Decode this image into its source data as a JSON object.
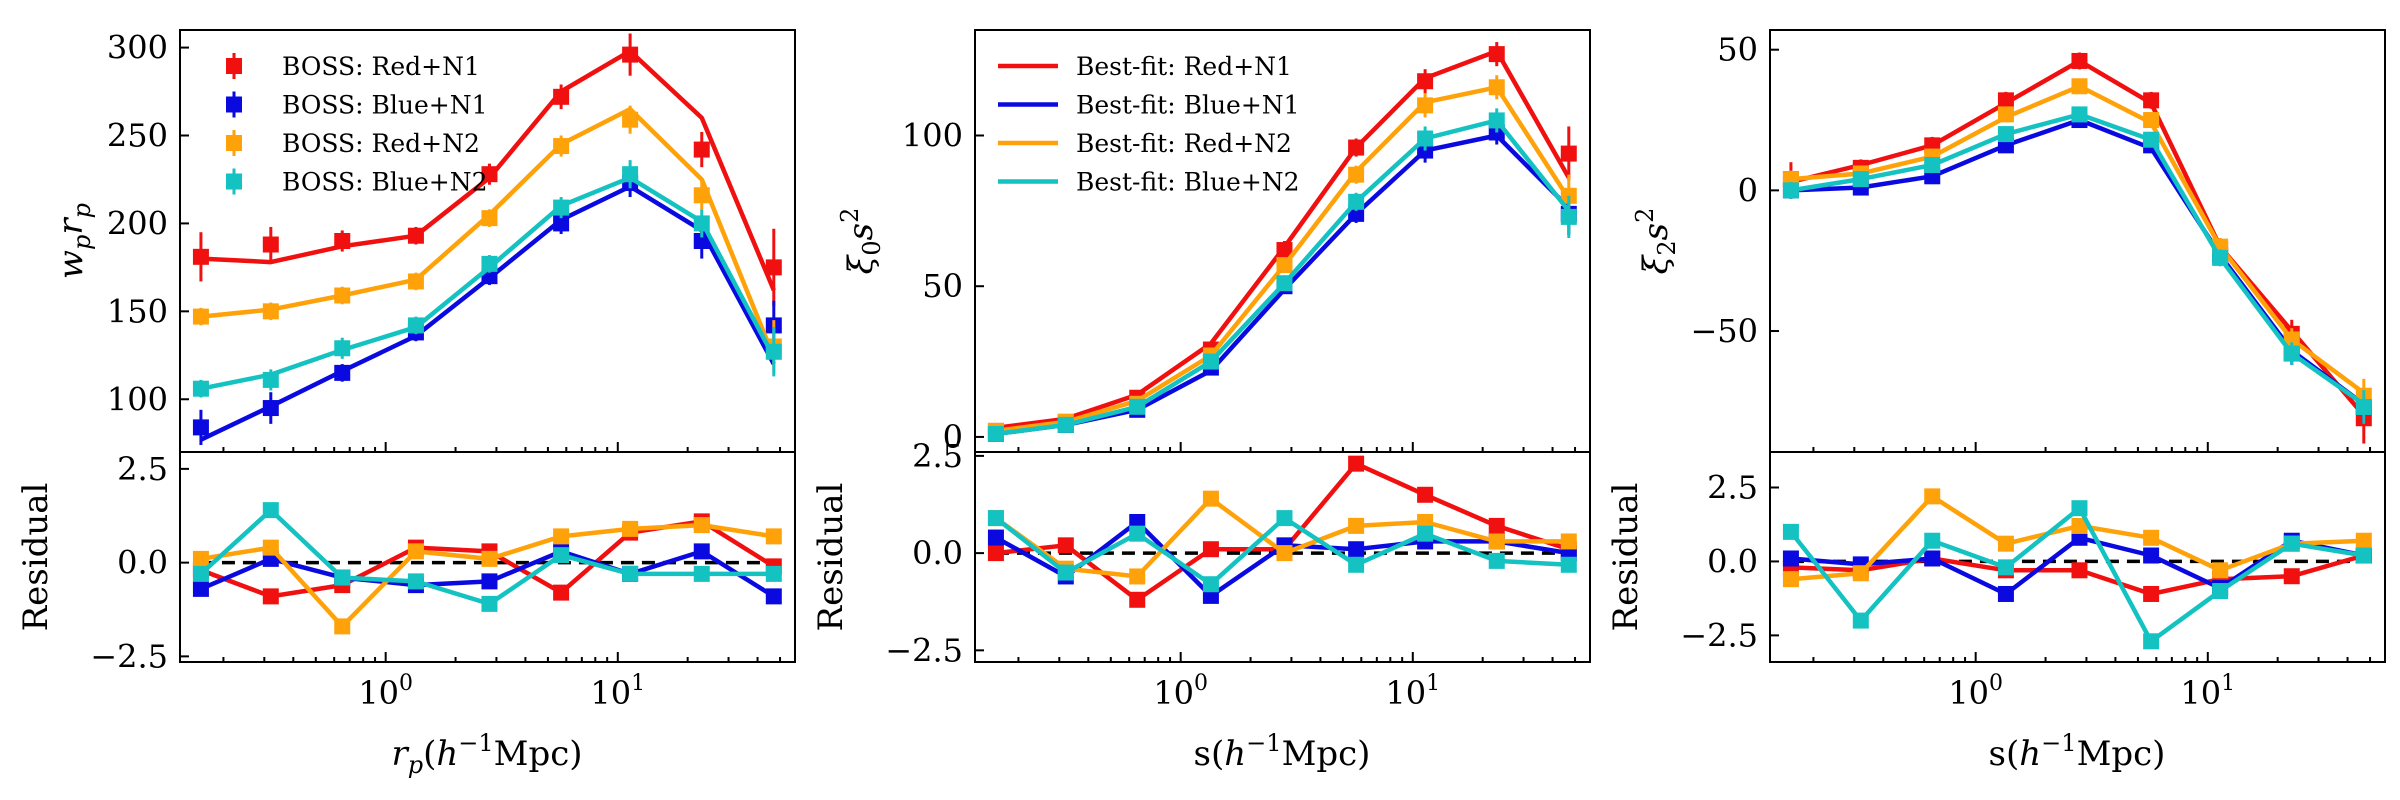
{
  "colors": {
    "red": "#f01010",
    "blue": "#0a0ae0",
    "orange": "#ffa20a",
    "cyan": "#14c2c2"
  },
  "chart_data": [
    {
      "type": "line",
      "panel": "wp-main",
      "xscale": "log",
      "xlim": [
        0.13,
        58
      ],
      "ylim": [
        70,
        310
      ],
      "xticks": [
        {
          "v": 1,
          "label": "10",
          "exp": "0"
        },
        {
          "v": 10,
          "label": "10",
          "exp": "1"
        }
      ],
      "xlabel": "",
      "ylabel": "w_p r_p",
      "yticks": [
        100,
        150,
        200,
        250,
        300
      ],
      "x": [
        0.16,
        0.32,
        0.65,
        1.35,
        2.8,
        5.7,
        11.3,
        23,
        47
      ],
      "legend": {
        "kind": "marker",
        "position": "top-left",
        "entries": [
          "BOSS: Red+N1",
          "BOSS: Blue+N1",
          "BOSS: Red+N2",
          "BOSS: Blue+N2"
        ]
      },
      "series": [
        {
          "name": "Red+N1",
          "color": "red",
          "markers": [
            181,
            188,
            190,
            193,
            228,
            272,
            296,
            242,
            175
          ],
          "errors": [
            14,
            10,
            6,
            5,
            6,
            7,
            12,
            10,
            22
          ],
          "line": [
            180,
            178,
            187,
            193,
            226,
            275,
            298,
            260,
            162
          ]
        },
        {
          "name": "Blue+N1",
          "color": "blue",
          "markers": [
            84,
            95,
            115,
            138,
            170,
            200,
            223,
            190,
            142
          ],
          "errors": [
            10,
            9,
            5,
            5,
            5,
            6,
            8,
            10,
            14
          ],
          "line": [
            77,
            96,
            116,
            136,
            169,
            202,
            221,
            196,
            120
          ]
        },
        {
          "name": "Red+N2",
          "color": "orange",
          "markers": [
            147,
            150,
            159,
            167,
            203,
            244,
            259,
            216,
            130
          ],
          "errors": [
            5,
            5,
            5,
            5,
            5,
            6,
            8,
            8,
            15
          ],
          "line": [
            147,
            151,
            159,
            168,
            205,
            245,
            265,
            225,
            124
          ]
        },
        {
          "name": "Blue+N2",
          "color": "cyan",
          "markers": [
            106,
            111,
            129,
            142,
            177,
            209,
            228,
            200,
            127
          ],
          "errors": [
            5,
            6,
            6,
            5,
            5,
            6,
            8,
            8,
            14
          ],
          "line": [
            106,
            114,
            128,
            141,
            175,
            210,
            226,
            201,
            124
          ]
        }
      ]
    },
    {
      "type": "line",
      "panel": "xi0-main",
      "xscale": "log",
      "xlim": [
        0.13,
        58
      ],
      "ylim": [
        -5,
        135
      ],
      "xlabel": "",
      "ylabel": "ξ_0 s^2",
      "yticks": [
        0,
        50,
        100
      ],
      "x": [
        0.16,
        0.32,
        0.65,
        1.35,
        2.8,
        5.7,
        11.3,
        23,
        47
      ],
      "legend": {
        "kind": "line",
        "position": "top-left",
        "entries": [
          "Best-fit: Red+N1",
          "Best-fit: Blue+N1",
          "Best-fit: Red+N2",
          "Best-fit: Blue+N2"
        ]
      },
      "series": [
        {
          "name": "Red+N1",
          "color": "red",
          "markers": [
            2,
            5,
            13,
            29,
            62,
            96,
            118,
            127,
            94
          ],
          "errors": [
            1,
            1,
            2,
            2,
            3,
            3,
            4,
            4,
            9
          ],
          "line": [
            3,
            6,
            14,
            31,
            63,
            96,
            119,
            128,
            86
          ]
        },
        {
          "name": "Blue+N1",
          "color": "blue",
          "markers": [
            1,
            4,
            9,
            23,
            50,
            74,
            95,
            101,
            74
          ],
          "errors": [
            1,
            1,
            2,
            2,
            2,
            3,
            4,
            4,
            7
          ],
          "line": [
            1,
            4,
            9,
            22,
            49,
            74,
            95,
            100,
            76
          ]
        },
        {
          "name": "Red+N2",
          "color": "orange",
          "markers": [
            2,
            5,
            11,
            27,
            57,
            87,
            110,
            116,
            80
          ],
          "errors": [
            1,
            1,
            2,
            2,
            2,
            3,
            4,
            4,
            7
          ],
          "line": [
            2,
            5,
            12,
            27,
            57,
            88,
            111,
            116,
            79
          ]
        },
        {
          "name": "Blue+N2",
          "color": "cyan",
          "markers": [
            1,
            4,
            10,
            25,
            51,
            78,
            99,
            105,
            73
          ],
          "errors": [
            1,
            1,
            2,
            2,
            2,
            3,
            4,
            4,
            7
          ],
          "line": [
            1,
            4,
            10,
            25,
            51,
            78,
            99,
            105,
            75
          ]
        }
      ]
    },
    {
      "type": "line",
      "panel": "xi2-main",
      "xscale": "log",
      "xlim": [
        0.13,
        58
      ],
      "ylim": [
        -93,
        57
      ],
      "xlabel": "",
      "ylabel": "ξ_2 s^2",
      "yticks": [
        {
          "v": 50,
          "label": "50"
        },
        {
          "v": 0,
          "label": "0"
        },
        {
          "v": -50,
          "label": "−50"
        }
      ],
      "x": [
        0.16,
        0.32,
        0.65,
        1.35,
        2.8,
        5.7,
        11.3,
        23,
        47
      ],
      "series": [
        {
          "name": "Red+N1",
          "color": "red",
          "markers": [
            4,
            8,
            16,
            32,
            46,
            32,
            -21,
            -51,
            -81
          ],
          "errors": [
            6,
            3,
            3,
            3,
            3,
            3,
            4,
            5,
            9
          ],
          "line": [
            3,
            9,
            16,
            31,
            46,
            31,
            -20,
            -50,
            -80
          ]
        },
        {
          "name": "Blue+N1",
          "color": "blue",
          "markers": [
            0,
            1,
            5,
            16,
            25,
            16,
            -23,
            -58,
            -77
          ],
          "errors": [
            3,
            2,
            2,
            2,
            2,
            2,
            3,
            4,
            6
          ],
          "line": [
            0,
            1,
            5,
            16,
            25,
            15,
            -23,
            -57,
            -76
          ]
        },
        {
          "name": "Red+N2",
          "color": "orange",
          "markers": [
            4,
            6,
            12,
            27,
            37,
            25,
            -20,
            -53,
            -73
          ],
          "errors": [
            3,
            2,
            2,
            2,
            2,
            2,
            3,
            4,
            6
          ],
          "line": [
            4,
            6,
            12,
            26,
            37,
            24,
            -20,
            -53,
            -72
          ]
        },
        {
          "name": "Blue+N2",
          "color": "cyan",
          "markers": [
            0,
            4,
            9,
            20,
            27,
            18,
            -24,
            -58,
            -77
          ],
          "errors": [
            3,
            2,
            2,
            2,
            2,
            2,
            3,
            4,
            6
          ],
          "line": [
            0,
            4,
            9,
            20,
            27,
            18,
            -24,
            -58,
            -76
          ]
        }
      ]
    },
    {
      "type": "line",
      "panel": "wp-resid",
      "xscale": "log",
      "xlim": [
        0.13,
        58
      ],
      "ylim": [
        -2.65,
        2.95
      ],
      "xlabel": "r_p(h^{-1}Mpc)",
      "ylabel": "Residual",
      "yticks": [
        {
          "v": 2.5,
          "label": "2.5"
        },
        {
          "v": 0,
          "label": "0.0"
        },
        {
          "v": -2.5,
          "label": "−2.5"
        }
      ],
      "xticks": [
        {
          "v": 1,
          "label": "10",
          "exp": "0"
        },
        {
          "v": 10,
          "label": "10",
          "exp": "1"
        }
      ],
      "x": [
        0.16,
        0.32,
        0.65,
        1.35,
        2.8,
        5.7,
        11.3,
        23,
        47
      ],
      "series": [
        {
          "name": "Red+N1",
          "color": "red",
          "values": [
            -0.2,
            -0.9,
            -0.6,
            0.4,
            0.3,
            -0.8,
            0.8,
            1.1,
            -0.1
          ]
        },
        {
          "name": "Blue+N1",
          "color": "blue",
          "values": [
            -0.7,
            0.1,
            -0.4,
            -0.6,
            -0.5,
            0.3,
            -0.3,
            0.3,
            -0.9
          ]
        },
        {
          "name": "Red+N2",
          "color": "orange",
          "values": [
            0.1,
            0.4,
            -1.7,
            0.3,
            0.1,
            0.7,
            0.9,
            1.0,
            0.7
          ]
        },
        {
          "name": "Blue+N2",
          "color": "cyan",
          "values": [
            -0.3,
            1.4,
            -0.4,
            -0.5,
            -1.1,
            0.2,
            -0.3,
            -0.3,
            -0.3
          ]
        }
      ]
    },
    {
      "type": "line",
      "panel": "xi0-resid",
      "xscale": "log",
      "xlim": [
        0.13,
        58
      ],
      "ylim": [
        -2.8,
        2.6
      ],
      "xlabel": "s(h^{-1}Mpc)",
      "ylabel": "Residual",
      "yticks": [
        {
          "v": 2.5,
          "label": "2.5"
        },
        {
          "v": 0,
          "label": "0.0"
        },
        {
          "v": -2.5,
          "label": "−2.5"
        }
      ],
      "xticks": [
        {
          "v": 1,
          "label": "10",
          "exp": "0"
        },
        {
          "v": 10,
          "label": "10",
          "exp": "1"
        }
      ],
      "x": [
        0.16,
        0.32,
        0.65,
        1.35,
        2.8,
        5.7,
        11.3,
        23,
        47
      ],
      "series": [
        {
          "name": "Red+N1",
          "color": "red",
          "values": [
            0.0,
            0.2,
            -1.2,
            0.1,
            0.1,
            2.3,
            1.5,
            0.7,
            0.1
          ]
        },
        {
          "name": "Blue+N1",
          "color": "blue",
          "values": [
            0.4,
            -0.6,
            0.8,
            -1.1,
            0.2,
            0.1,
            0.3,
            0.3,
            0.0
          ]
        },
        {
          "name": "Red+N2",
          "color": "orange",
          "values": [
            0.9,
            -0.4,
            -0.6,
            1.4,
            0.0,
            0.7,
            0.8,
            0.3,
            0.3
          ]
        },
        {
          "name": "Blue+N2",
          "color": "cyan",
          "values": [
            0.9,
            -0.5,
            0.5,
            -0.8,
            0.9,
            -0.3,
            0.5,
            -0.2,
            -0.3
          ]
        }
      ]
    },
    {
      "type": "line",
      "panel": "xi2-resid",
      "xscale": "log",
      "xlim": [
        0.13,
        58
      ],
      "ylim": [
        -3.4,
        3.7
      ],
      "xlabel": "s(h^{-1}Mpc)",
      "ylabel": "Residual",
      "yticks": [
        {
          "v": 2.5,
          "label": "2.5"
        },
        {
          "v": 0,
          "label": "0.0"
        },
        {
          "v": -2.5,
          "label": "−2.5"
        }
      ],
      "xticks": [
        {
          "v": 1,
          "label": "10",
          "exp": "0"
        },
        {
          "v": 10,
          "label": "10",
          "exp": "1"
        }
      ],
      "x": [
        0.16,
        0.32,
        0.65,
        1.35,
        2.8,
        5.7,
        11.3,
        23,
        47
      ],
      "series": [
        {
          "name": "Red+N1",
          "color": "red",
          "values": [
            -0.2,
            -0.3,
            0.1,
            -0.3,
            -0.3,
            -1.1,
            -0.6,
            -0.5,
            0.2
          ]
        },
        {
          "name": "Blue+N1",
          "color": "blue",
          "values": [
            0.1,
            -0.1,
            0.1,
            -1.1,
            0.8,
            0.2,
            -0.9,
            0.7,
            0.2
          ]
        },
        {
          "name": "Red+N2",
          "color": "orange",
          "values": [
            -0.6,
            -0.4,
            2.2,
            0.6,
            1.2,
            0.8,
            -0.3,
            0.6,
            0.7
          ]
        },
        {
          "name": "Blue+N2",
          "color": "cyan",
          "values": [
            1.0,
            -2.0,
            0.7,
            -0.2,
            1.8,
            -2.7,
            -1.0,
            0.6,
            0.2
          ]
        }
      ]
    }
  ]
}
